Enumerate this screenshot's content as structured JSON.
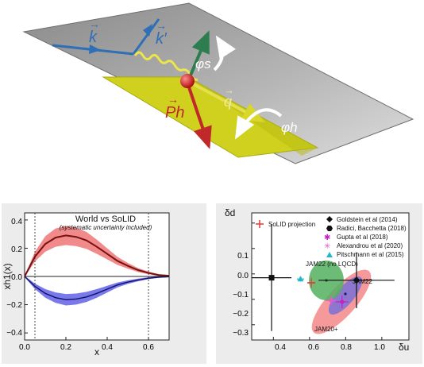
{
  "top_diagram": {
    "labels": {
      "k": "k",
      "k_prime": "k′",
      "phi_s": "φs",
      "q": "q",
      "P_h": "Ph",
      "phi_h": "φh"
    },
    "colors": {
      "lepton": "#2f6fb5",
      "spin": "#2e7d4f",
      "hadron": "#c0282a",
      "photon": "#e6e14a",
      "hadron_plane": "#cfd11e",
      "lepton_plane": "#9b9b9b"
    }
  },
  "left_chart": {
    "title": "World vs SoLID",
    "subtitle": "(systematic uncertainty included)",
    "ylabel": "xh1(x)",
    "xlabel": "x",
    "x_ticks": [
      "0.0",
      "0.2",
      "0.4",
      "0.6"
    ],
    "y_ticks": [
      "0.4",
      "0.2",
      "0.0",
      "−0.2",
      "−0.4"
    ]
  },
  "right_chart": {
    "ylabel": "δd",
    "xlabel": "δu",
    "x_ticks": [
      "0.4",
      "0.6",
      "0.8",
      "1.0"
    ],
    "y_ticks": [
      "0.1",
      "0.0",
      "−0.1",
      "−0.2",
      "−0.3"
    ],
    "legend_left": "SoLID projection",
    "legend": [
      "Goldstein et al (2014)",
      "Radici, Bacchetta (2018)",
      "Gupta et al (2018)",
      "Alexandrou et al (2020)",
      "Pitschmann et al (2015)"
    ],
    "region_labels": {
      "jam22_nolqcd": "JAM22 (no LQCD)",
      "jam22": "JAM22",
      "jam20": "JAM20+"
    }
  },
  "chart_data": [
    {
      "type": "line",
      "x": [
        0.0,
        0.05,
        0.1,
        0.15,
        0.2,
        0.25,
        0.3,
        0.35,
        0.4,
        0.45,
        0.5,
        0.55,
        0.6,
        0.65,
        0.7
      ],
      "series": [
        {
          "values": [
            0.0,
            0.14,
            0.23,
            0.275,
            0.29,
            0.28,
            0.255,
            0.21,
            0.16,
            0.11,
            0.075,
            0.045,
            0.025,
            0.01,
            0.005
          ]
        },
        {
          "values": [
            0.0,
            -0.07,
            -0.12,
            -0.15,
            -0.165,
            -0.16,
            -0.145,
            -0.12,
            -0.09,
            -0.06,
            -0.04,
            -0.025,
            -0.012,
            -0.005,
            -0.002
          ]
        }
      ],
      "xlim": [
        0.0,
        0.7
      ],
      "ylim": [
        -0.45,
        0.45
      ],
      "vlines": [
        0.05,
        0.6
      ]
    },
    {
      "type": "scatter",
      "xlim": [
        0.28,
        1.15
      ],
      "ylim": [
        -0.36,
        0.14
      ],
      "points": [
        {
          "x": 0.39,
          "y": -0.115,
          "xerr": 0.11,
          "yerr": 0.21,
          "marker": "square"
        },
        {
          "x": 0.55,
          "y": -0.12,
          "xerr": 0.02,
          "yerr": 0.01,
          "marker": "triangle"
        },
        {
          "x": 0.86,
          "y": -0.125,
          "xerr": 0.21,
          "yerr": 0.11,
          "marker": "diamond"
        },
        {
          "x": 0.78,
          "y": -0.21,
          "xerr": 0.035,
          "yerr": 0.025,
          "marker": "star-magenta"
        },
        {
          "x": 0.72,
          "y": -0.205,
          "xerr": 0.03,
          "yerr": 0.02,
          "marker": "star-pink"
        },
        {
          "x": 0.61,
          "y": -0.135,
          "xerr": 0.02,
          "yerr": 0.02,
          "marker": "plus-red"
        }
      ]
    }
  ]
}
